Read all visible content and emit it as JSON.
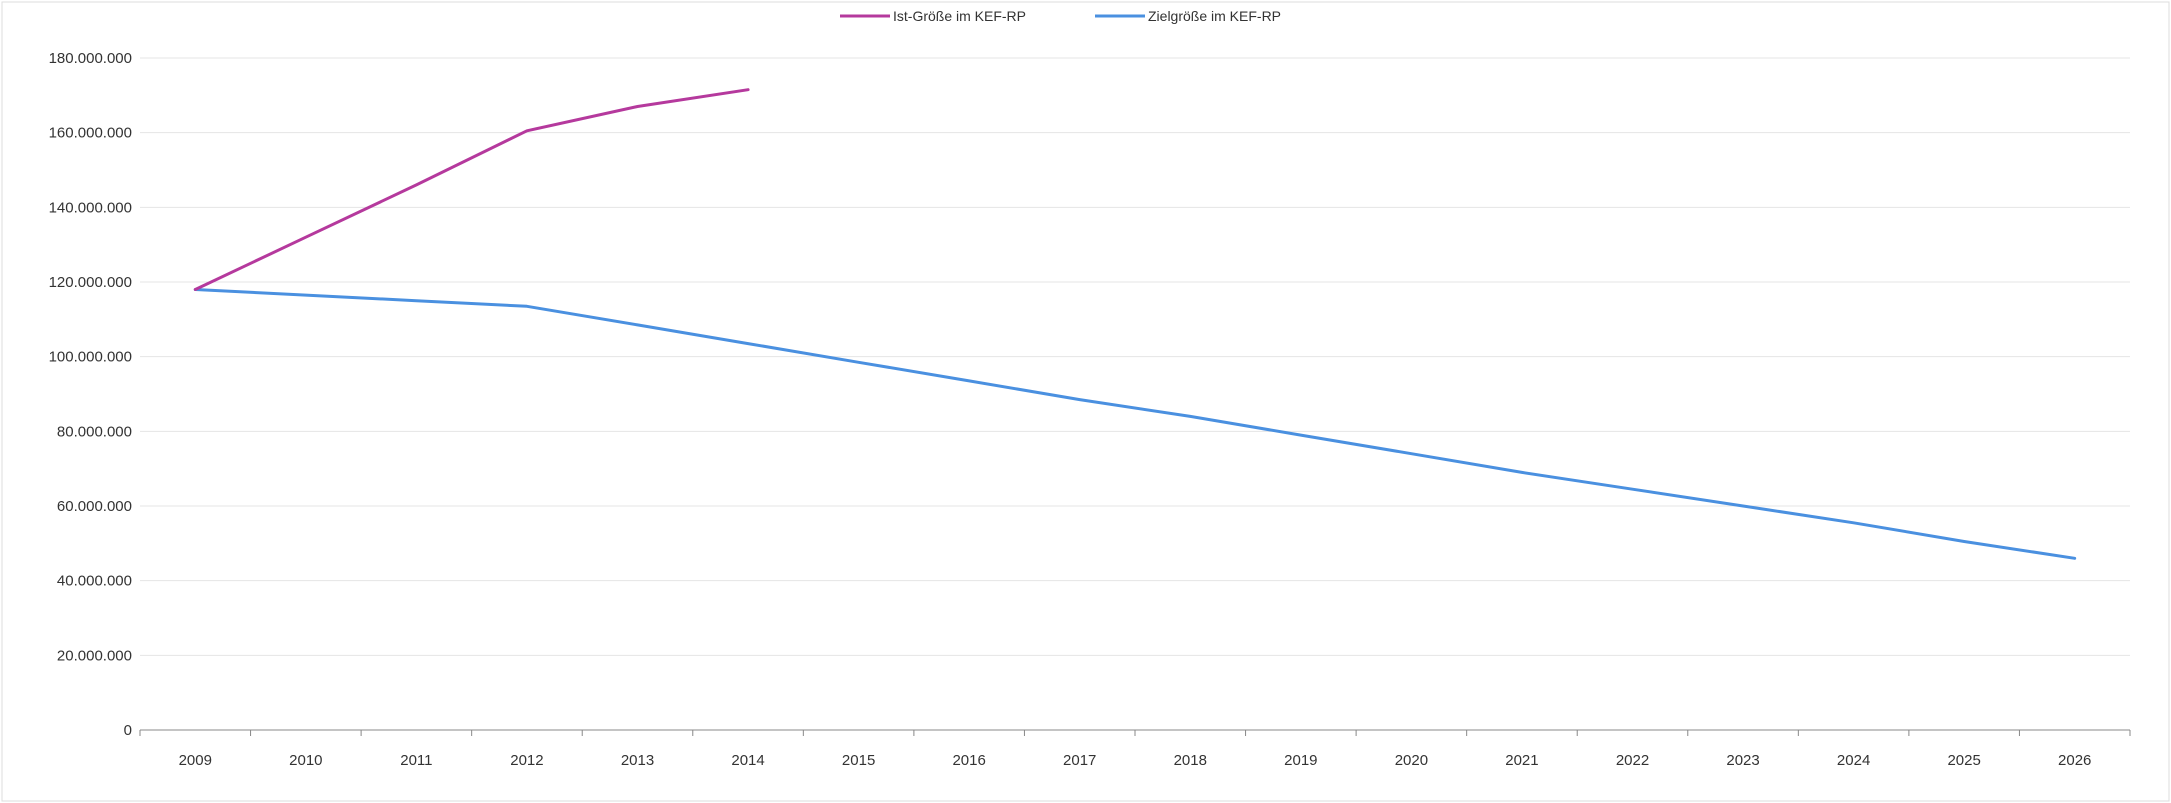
{
  "chart_data": {
    "type": "line",
    "categories": [
      "2009",
      "2010",
      "2011",
      "2012",
      "2013",
      "2014",
      "2015",
      "2016",
      "2017",
      "2018",
      "2019",
      "2020",
      "2021",
      "2022",
      "2023",
      "2024",
      "2025",
      "2026"
    ],
    "series": [
      {
        "name": "Ist-Größe im KEF-RP",
        "color": "#b5399d",
        "values": [
          118000000,
          132000000,
          146000000,
          160500000,
          167000000,
          171500000,
          null,
          null,
          null,
          null,
          null,
          null,
          null,
          null,
          null,
          null,
          null,
          null
        ]
      },
      {
        "name": "Zielgröße im KEF-RP",
        "color": "#4a90e0",
        "values": [
          118000000,
          116500000,
          115000000,
          113500000,
          108500000,
          103500000,
          98500000,
          93500000,
          88500000,
          84000000,
          79000000,
          74000000,
          69000000,
          64500000,
          60000000,
          55500000,
          50500000,
          46000000
        ]
      }
    ],
    "y_tick_labels": [
      "0",
      "20.000.000",
      "40.000.000",
      "60.000.000",
      "80.000.000",
      "100.000.000",
      "120.000.000",
      "140.000.000",
      "160.000.000",
      "180.000.000"
    ],
    "y_tick_values": [
      0,
      20000000,
      40000000,
      60000000,
      80000000,
      100000000,
      120000000,
      140000000,
      160000000,
      180000000
    ],
    "ylim": [
      0,
      180000000
    ],
    "grid": true,
    "legend_position": "top-center",
    "title": "",
    "xlabel": "",
    "ylabel": ""
  }
}
